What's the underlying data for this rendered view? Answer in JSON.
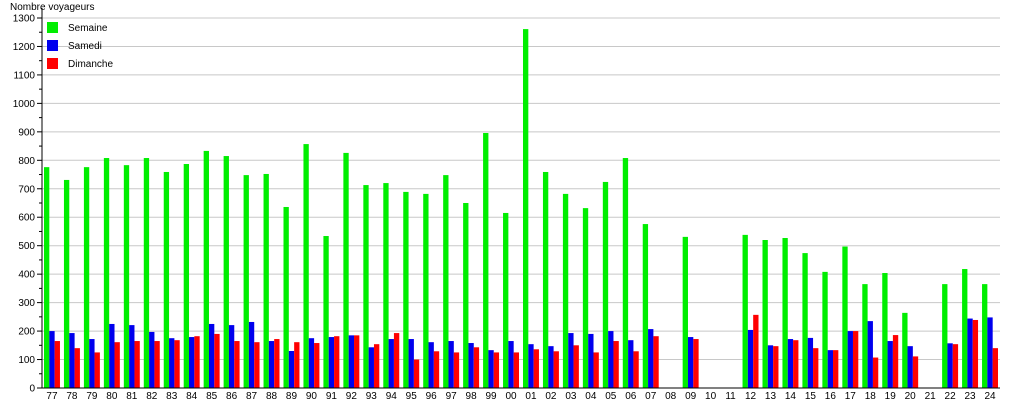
{
  "chart_data": {
    "type": "bar",
    "title": "",
    "ylabel": "Nombre voyageurs",
    "xlabel": "",
    "ylim": [
      0,
      1300
    ],
    "yticks": [
      0,
      100,
      200,
      300,
      400,
      500,
      600,
      700,
      800,
      900,
      1000,
      1100,
      1200,
      1300
    ],
    "grid": true,
    "legend_placement": "top-left",
    "categories": [
      "77",
      "78",
      "79",
      "80",
      "81",
      "82",
      "83",
      "84",
      "85",
      "86",
      "87",
      "88",
      "89",
      "90",
      "91",
      "92",
      "93",
      "94",
      "95",
      "96",
      "97",
      "98",
      "99",
      "00",
      "01",
      "02",
      "03",
      "04",
      "05",
      "06",
      "07",
      "08",
      "09",
      "10",
      "11",
      "12",
      "13",
      "14",
      "15",
      "16",
      "17",
      "18",
      "19",
      "20",
      "21",
      "22",
      "23",
      "24"
    ],
    "series": [
      {
        "name": "Semaine",
        "color": "#00ee00",
        "values": [
          776,
          731,
          776,
          808,
          783,
          808,
          759,
          787,
          833,
          815,
          748,
          752,
          636,
          857,
          534,
          826,
          713,
          720,
          689,
          682,
          748,
          650,
          896,
          615,
          1261,
          759,
          682,
          632,
          724,
          808,
          576,
          0,
          531,
          0,
          0,
          538,
          520,
          527,
          474,
          408,
          497,
          365,
          404,
          264,
          0,
          365,
          418,
          365
        ]
      },
      {
        "name": "Samedi",
        "color": "#0000ee",
        "values": [
          200,
          193,
          172,
          225,
          221,
          197,
          175,
          179,
          225,
          221,
          232,
          165,
          130,
          175,
          179,
          185,
          143,
          172,
          172,
          161,
          165,
          158,
          133,
          165,
          154,
          147,
          193,
          190,
          200,
          168,
          207,
          0,
          179,
          0,
          0,
          204,
          150,
          172,
          176,
          133,
          200,
          235,
          165,
          147,
          0,
          157,
          244,
          248
        ]
      },
      {
        "name": "Dimanche",
        "color": "#ff0000",
        "values": [
          165,
          140,
          125,
          161,
          165,
          165,
          168,
          182,
          190,
          165,
          161,
          172,
          161,
          158,
          182,
          185,
          154,
          193,
          100,
          129,
          125,
          143,
          125,
          125,
          136,
          129,
          150,
          125,
          165,
          129,
          182,
          0,
          172,
          0,
          0,
          257,
          147,
          168,
          140,
          133,
          200,
          107,
          186,
          111,
          0,
          154,
          239,
          140
        ]
      }
    ]
  }
}
